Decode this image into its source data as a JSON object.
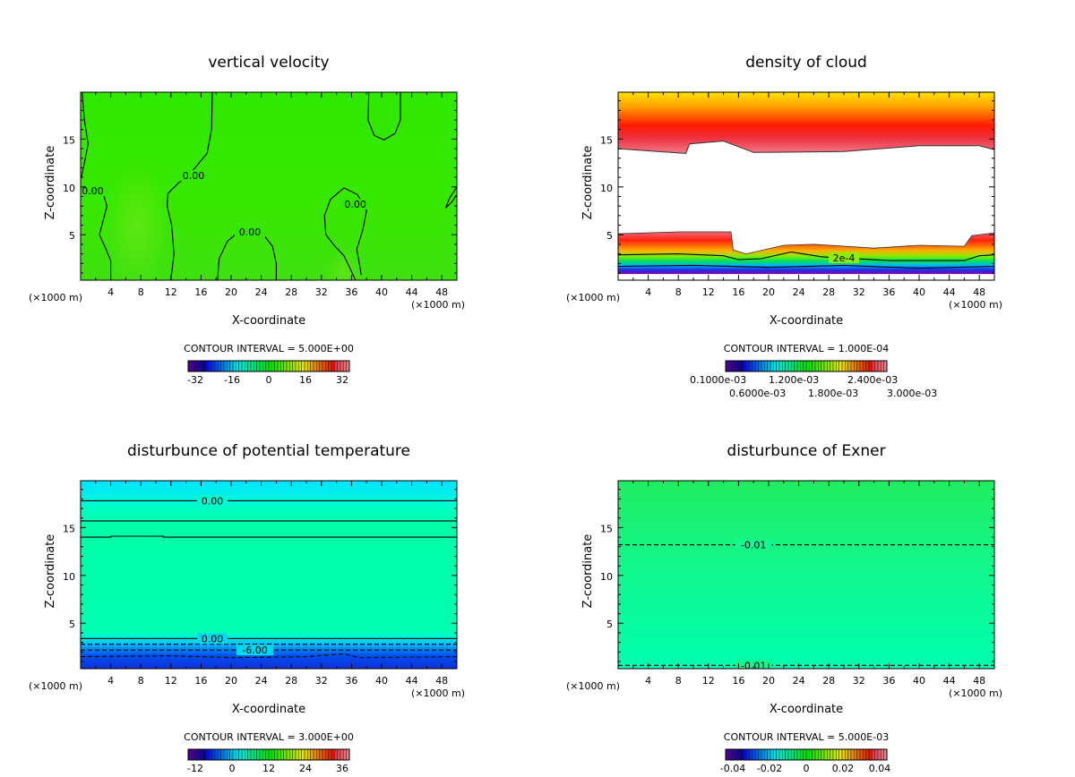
{
  "chart_data": [
    {
      "type": "heatmap",
      "title": "vertical velocity",
      "xlabel": "X-coordinate",
      "ylabel": "Z-coordinate",
      "x_unit": "(×1000 m)",
      "xlim": [
        0,
        50
      ],
      "ylim": [
        0.25,
        19.9
      ],
      "xticks": [
        4,
        8,
        12,
        16,
        20,
        24,
        28,
        32,
        36,
        40,
        44,
        48
      ],
      "yticks": [
        5,
        10,
        15
      ],
      "contour_interval": "CONTOUR INTERVAL = 5.000E+00",
      "colorbar_labels": [
        "-32",
        "-16",
        "0",
        "16",
        "32"
      ],
      "fill": "#2fe600",
      "contours": [
        {
          "dashed": false,
          "points": [
            [
              12,
              0.3
            ],
            [
              12.4,
              3
            ],
            [
              12.1,
              6
            ],
            [
              11.5,
              8
            ],
            [
              11.6,
              9.3
            ],
            [
              13,
              10.4
            ],
            [
              15,
              11.8
            ],
            [
              16.8,
              13.5
            ],
            [
              17.4,
              16
            ],
            [
              17.5,
              19.9
            ]
          ]
        },
        {
          "dashed": false,
          "points": [
            [
              0.2,
              19.9
            ],
            [
              0.5,
              17
            ],
            [
              1,
              14.5
            ],
            [
              0.5,
              12.5
            ],
            [
              0.1,
              11
            ]
          ]
        },
        {
          "dashed": false,
          "points": [
            [
              0.1,
              9.3
            ],
            [
              1.5,
              9.7
            ],
            [
              3,
              9.3
            ],
            [
              3.5,
              8
            ],
            [
              3,
              6.5
            ],
            [
              2.5,
              5
            ],
            [
              3.2,
              3.8
            ],
            [
              4,
              2.3
            ],
            [
              4,
              0.3
            ]
          ]
        },
        {
          "dashed": false,
          "points": [
            [
              18.2,
              0.3
            ],
            [
              18.4,
              2.5
            ],
            [
              19.5,
              4.3
            ],
            [
              21,
              5.3
            ],
            [
              22.5,
              5.8
            ],
            [
              24,
              5.3
            ],
            [
              25.5,
              3.8
            ],
            [
              26,
              2
            ],
            [
              26,
              0.3
            ]
          ]
        },
        {
          "dashed": false,
          "points": [
            [
              36.5,
              0.3
            ],
            [
              35.8,
              1.5
            ],
            [
              35,
              2.8
            ],
            [
              33.8,
              3.8
            ],
            [
              32.6,
              5
            ],
            [
              32.4,
              7
            ],
            [
              33.2,
              8.7
            ],
            [
              35,
              9.9
            ],
            [
              36.8,
              9.2
            ],
            [
              38,
              7.5
            ],
            [
              37.5,
              5.5
            ],
            [
              36.7,
              3.5
            ],
            [
              37.3,
              0.8
            ]
          ]
        },
        {
          "dashed": false,
          "points": [
            [
              38.3,
              19.9
            ],
            [
              38.2,
              17
            ],
            [
              39,
              15.4
            ],
            [
              40.3,
              14.9
            ],
            [
              41.8,
              15.6
            ],
            [
              42.5,
              17
            ],
            [
              42.5,
              19.9
            ]
          ]
        },
        {
          "dashed": false,
          "points": [
            [
              50,
              10
            ],
            [
              49,
              8.8
            ],
            [
              48.5,
              7.8
            ],
            [
              49.3,
              8.4
            ],
            [
              50,
              9.2
            ]
          ]
        }
      ],
      "contour_labels": [
        {
          "text": "0.00",
          "x": 1.6,
          "z": 9.6
        },
        {
          "text": "0.00",
          "x": 15,
          "z": 11.2
        },
        {
          "text": "0.00",
          "x": 22.5,
          "z": 5.3
        },
        {
          "text": "0.00",
          "x": 36.5,
          "z": 8.2
        }
      ]
    },
    {
      "type": "heatmap",
      "title": "density of cloud",
      "xlabel": "X-coordinate",
      "ylabel": "Z-coordinate",
      "x_unit": "(×1000 m)",
      "xlim": [
        0,
        50
      ],
      "ylim": [
        0.25,
        19.9
      ],
      "xticks": [
        4,
        8,
        12,
        16,
        20,
        24,
        28,
        32,
        36,
        40,
        44,
        48
      ],
      "yticks": [
        5,
        10,
        15
      ],
      "contour_interval": "CONTOUR INTERVAL = 1.000E-04",
      "colorbar_labels": [
        "0.1000e-03",
        "0.6000e-03",
        "1.200e-03",
        "1.800e-03",
        "2.400e-03",
        "3.000e-03"
      ],
      "cloud_top_lower_edge": [
        [
          0,
          14
        ],
        [
          9,
          13.5
        ],
        [
          9.5,
          14.5
        ],
        [
          14,
          14.8
        ],
        [
          18,
          13.6
        ],
        [
          30,
          13.7
        ],
        [
          40,
          14.3
        ],
        [
          48,
          14.3
        ],
        [
          50,
          13.9
        ]
      ],
      "cloud_base_upper_edge": [
        [
          0,
          5.1
        ],
        [
          8,
          5.3
        ],
        [
          15,
          5.3
        ],
        [
          15.3,
          3.4
        ],
        [
          17,
          3
        ],
        [
          22,
          3.9
        ],
        [
          26,
          4
        ],
        [
          34,
          3.6
        ],
        [
          40,
          3.9
        ],
        [
          46,
          3.8
        ],
        [
          47,
          4.9
        ],
        [
          50,
          5.2
        ]
      ],
      "contours": [
        {
          "dashed": false,
          "points": [
            [
              0,
              2.9
            ],
            [
              8,
              3
            ],
            [
              14,
              2.8
            ],
            [
              16,
              2.4
            ],
            [
              19,
              2.5
            ],
            [
              23,
              3.2
            ],
            [
              27,
              2.7
            ],
            [
              36,
              2.3
            ],
            [
              46,
              2.3
            ],
            [
              48,
              2.8
            ],
            [
              50,
              2.9
            ]
          ]
        },
        {
          "dashed": false,
          "points": [
            [
              0,
              1.7
            ],
            [
              10,
              1.8
            ],
            [
              20,
              1.6
            ],
            [
              30,
              1.8
            ],
            [
              40,
              1.5
            ],
            [
              50,
              1.7
            ]
          ]
        }
      ],
      "contour_labels": [
        {
          "text": "2e-4",
          "x": 30,
          "z": 2.6
        }
      ]
    },
    {
      "type": "heatmap",
      "title": "disturbunce of potential temperature",
      "xlabel": "X-coordinate",
      "ylabel": "Z-coordinate",
      "x_unit": "(×1000 m)",
      "xlim": [
        0,
        50
      ],
      "ylim": [
        0.25,
        19.9
      ],
      "xticks": [
        4,
        8,
        12,
        16,
        20,
        24,
        28,
        32,
        36,
        40,
        44,
        48
      ],
      "yticks": [
        5,
        10,
        15
      ],
      "contour_interval": "CONTOUR INTERVAL = 3.000E+00",
      "colorbar_labels": [
        "-12",
        "0",
        "12",
        "24",
        "36"
      ],
      "contours": [
        {
          "dashed": false,
          "points": [
            [
              0,
              17.8
            ],
            [
              50,
              17.8
            ]
          ]
        },
        {
          "dashed": false,
          "points": [
            [
              0,
              15.7
            ],
            [
              50,
              15.7
            ]
          ]
        },
        {
          "dashed": false,
          "points": [
            [
              0,
              14
            ],
            [
              4,
              14
            ],
            [
              4,
              14.1
            ],
            [
              11,
              14.1
            ],
            [
              11,
              14
            ],
            [
              50,
              14
            ]
          ]
        },
        {
          "dashed": false,
          "points": [
            [
              0,
              3.4
            ],
            [
              50,
              3.4
            ]
          ]
        },
        {
          "dashed": true,
          "points": [
            [
              0,
              2.8
            ],
            [
              50,
              2.8
            ]
          ]
        },
        {
          "dashed": true,
          "points": [
            [
              0,
              2.2
            ],
            [
              50,
              2.2
            ]
          ]
        },
        {
          "dashed": true,
          "points": [
            [
              0,
              1.5
            ],
            [
              12,
              1.6
            ],
            [
              20,
              1.4
            ],
            [
              30,
              1.5
            ],
            [
              35,
              1.8
            ],
            [
              37,
              1.4
            ],
            [
              50,
              1.5
            ]
          ]
        }
      ],
      "contour_labels": [
        {
          "text": "0.00",
          "x": 17.5,
          "z": 17.8
        },
        {
          "text": "0.00",
          "x": 17.5,
          "z": 3.4
        },
        {
          "text": "-6.00",
          "x": 18.5,
          "z": 2.2
        }
      ]
    },
    {
      "type": "heatmap",
      "title": "disturbunce of Exner",
      "xlabel": "X-coordinate",
      "ylabel": "Z-coordinate",
      "x_unit": "(×1000 m)",
      "xlim": [
        0,
        50
      ],
      "ylim": [
        0.25,
        19.9
      ],
      "xticks": [
        4,
        8,
        12,
        16,
        20,
        24,
        28,
        32,
        36,
        40,
        44,
        48
      ],
      "yticks": [
        5,
        10,
        15
      ],
      "contour_interval": "CONTOUR INTERVAL = 5.000E-03",
      "colorbar_labels": [
        "-0.04",
        "-0.02",
        "0",
        "0.02",
        "0.04"
      ],
      "contours": [
        {
          "dashed": true,
          "points": [
            [
              0,
              13.2
            ],
            [
              50,
              13.2
            ]
          ]
        },
        {
          "dashed": true,
          "points": [
            [
              0,
              0.6
            ],
            [
              50,
              0.6
            ]
          ]
        }
      ],
      "contour_labels": [
        {
          "text": "-0.01",
          "x": 18,
          "z": 13.2
        },
        {
          "text": "-0.01",
          "x": 18,
          "z": 0.6
        }
      ]
    }
  ]
}
